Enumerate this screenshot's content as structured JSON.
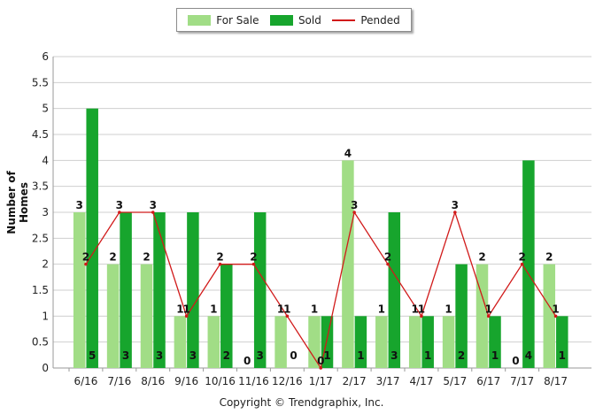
{
  "chart_data": {
    "type": "bar",
    "ylabel": "Number of Homes",
    "ylim": [
      0,
      6
    ],
    "yticks": [
      "0",
      "0.5",
      "1",
      "1.5",
      "2",
      "2.5",
      "3",
      "3.5",
      "4",
      "4.5",
      "5",
      "5.5",
      "6"
    ],
    "grid": true,
    "legend_position": "top-center",
    "categories": [
      "6/16",
      "7/16",
      "8/16",
      "9/16",
      "10/16",
      "11/16",
      "12/16",
      "1/17",
      "2/17",
      "3/17",
      "4/17",
      "5/17",
      "6/17",
      "7/17",
      "8/17"
    ],
    "series": [
      {
        "name": "For Sale",
        "type": "bar",
        "color": "#a1dd86",
        "values": [
          3,
          2,
          2,
          1,
          1,
          0,
          1,
          1,
          4,
          1,
          1,
          1,
          2,
          0,
          2
        ]
      },
      {
        "name": "Sold",
        "type": "bar",
        "color": "#17a52d",
        "values": [
          5,
          3,
          3,
          3,
          2,
          3,
          0,
          1,
          1,
          3,
          1,
          2,
          1,
          4,
          1
        ]
      },
      {
        "name": "Pended",
        "type": "line",
        "color": "#d11a1a",
        "values": [
          2,
          3,
          3,
          1,
          2,
          2,
          1,
          0,
          3,
          2,
          1,
          3,
          1,
          2,
          1
        ]
      }
    ]
  },
  "legend": {
    "for_sale": "For Sale",
    "sold": "Sold",
    "pended": "Pended"
  },
  "footer": {
    "copyright": "Copyright © Trendgraphix, Inc."
  }
}
